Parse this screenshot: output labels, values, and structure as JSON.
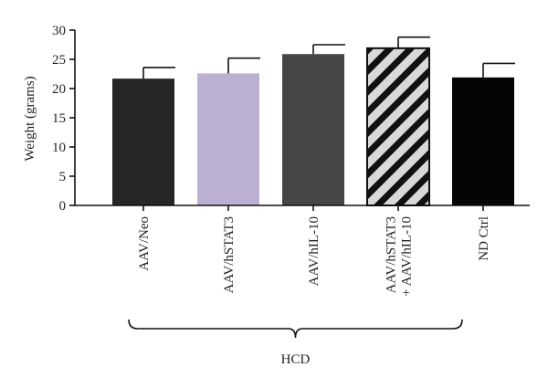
{
  "chart_data": {
    "type": "bar",
    "ylabel": "Weight (grams)",
    "ylim": [
      0,
      30
    ],
    "yticks": [
      0,
      5,
      10,
      15,
      20,
      25,
      30
    ],
    "categories": [
      [
        "AAV/Neo"
      ],
      [
        "AAV/hSTAT3"
      ],
      [
        "AAV/hIL-10"
      ],
      [
        "AAV/hSTAT3",
        "+ AAV/hIL-10"
      ],
      [
        "ND Ctrl"
      ]
    ],
    "values": [
      21.7,
      22.6,
      25.9,
      26.9,
      21.9
    ],
    "errors": [
      1.9,
      2.6,
      1.6,
      1.9,
      2.4
    ],
    "bar_styles": [
      {
        "fill": "#262626",
        "pattern": "none"
      },
      {
        "fill": "#bdb1d3",
        "pattern": "none"
      },
      {
        "fill": "#464646",
        "pattern": "none"
      },
      {
        "fill": "#d9d9d9",
        "pattern": "diagonal-stripes",
        "stripe_color": "#111111"
      },
      {
        "fill": "#050505",
        "pattern": "none"
      }
    ],
    "group_bracket": {
      "label": "HCD",
      "span": [
        0,
        3
      ]
    },
    "grid": false,
    "legend": "none"
  }
}
